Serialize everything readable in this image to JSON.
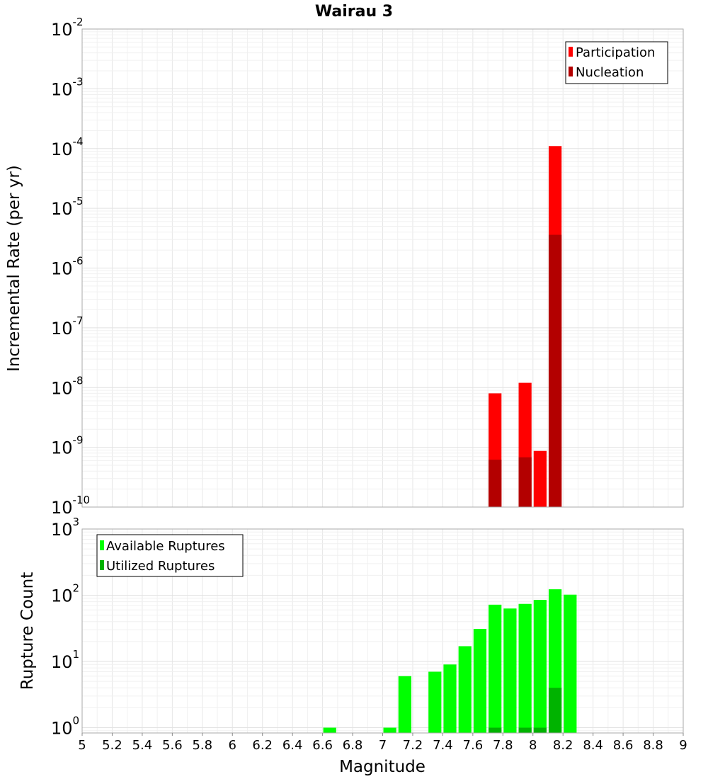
{
  "chart_data": {
    "title": "Wairau 3",
    "xlabel": "Magnitude",
    "x_ticks": [
      "5",
      "5.2",
      "5.4",
      "5.6",
      "5.8",
      "6",
      "6.2",
      "6.4",
      "6.6",
      "6.8",
      "7",
      "7.2",
      "7.4",
      "7.6",
      "7.8",
      "8",
      "8.2",
      "8.4",
      "8.6",
      "8.8",
      "9"
    ],
    "xlim": [
      5,
      9
    ],
    "bin_width": 0.1,
    "panels": [
      {
        "type": "bar",
        "ylabel": "Incremental Rate (per yr)",
        "yscale": "log",
        "ylim_exp": [
          -10,
          -2
        ],
        "y_ticks": [
          {
            "base": "10",
            "exp": "-2"
          },
          {
            "base": "10",
            "exp": "-3"
          },
          {
            "base": "10",
            "exp": "-4"
          },
          {
            "base": "10",
            "exp": "-5"
          },
          {
            "base": "10",
            "exp": "-6"
          },
          {
            "base": "10",
            "exp": "-7"
          },
          {
            "base": "10",
            "exp": "-8"
          },
          {
            "base": "10",
            "exp": "-9"
          },
          {
            "base": "10",
            "exp": "-10"
          }
        ],
        "legend": {
          "placement": "top-right",
          "entries": [
            "Participation",
            "Nucleation"
          ]
        },
        "series": [
          {
            "name": "Participation",
            "color": "#ff0000",
            "points": [
              {
                "x": 7.75,
                "y": 8e-09
              },
              {
                "x": 7.95,
                "y": 1.2e-08
              },
              {
                "x": 8.05,
                "y": 8.7e-10
              },
              {
                "x": 8.15,
                "y": 0.00011
              }
            ]
          },
          {
            "name": "Nucleation",
            "color": "#b30000",
            "points": [
              {
                "x": 7.75,
                "y": 6.2e-10
              },
              {
                "x": 7.95,
                "y": 6.8e-10
              },
              {
                "x": 8.15,
                "y": 3.6e-06
              }
            ]
          }
        ]
      },
      {
        "type": "bar",
        "ylabel": "Rupture Count",
        "yscale": "log",
        "ylim_exp": [
          -0.08,
          3
        ],
        "y_ticks": [
          {
            "base": "10",
            "exp": "3"
          },
          {
            "base": "10",
            "exp": "2"
          },
          {
            "base": "10",
            "exp": "1"
          },
          {
            "base": "10",
            "exp": "0"
          }
        ],
        "legend": {
          "placement": "top-left",
          "entries": [
            "Available Ruptures",
            "Utilized Ruptures"
          ]
        },
        "series": [
          {
            "name": "Available Ruptures",
            "color": "#00ff00",
            "points": [
              {
                "x": 6.65,
                "y": 1
              },
              {
                "x": 7.05,
                "y": 1
              },
              {
                "x": 7.15,
                "y": 6
              },
              {
                "x": 7.35,
                "y": 7
              },
              {
                "x": 7.45,
                "y": 9
              },
              {
                "x": 7.55,
                "y": 17
              },
              {
                "x": 7.65,
                "y": 31
              },
              {
                "x": 7.75,
                "y": 72
              },
              {
                "x": 7.85,
                "y": 63
              },
              {
                "x": 7.95,
                "y": 74
              },
              {
                "x": 8.05,
                "y": 85
              },
              {
                "x": 8.15,
                "y": 123
              },
              {
                "x": 8.25,
                "y": 102
              }
            ]
          },
          {
            "name": "Utilized Ruptures",
            "color": "#00b300",
            "points": [
              {
                "x": 7.75,
                "y": 1
              },
              {
                "x": 7.95,
                "y": 1
              },
              {
                "x": 8.05,
                "y": 1
              },
              {
                "x": 8.15,
                "y": 4
              }
            ]
          }
        ]
      }
    ]
  }
}
